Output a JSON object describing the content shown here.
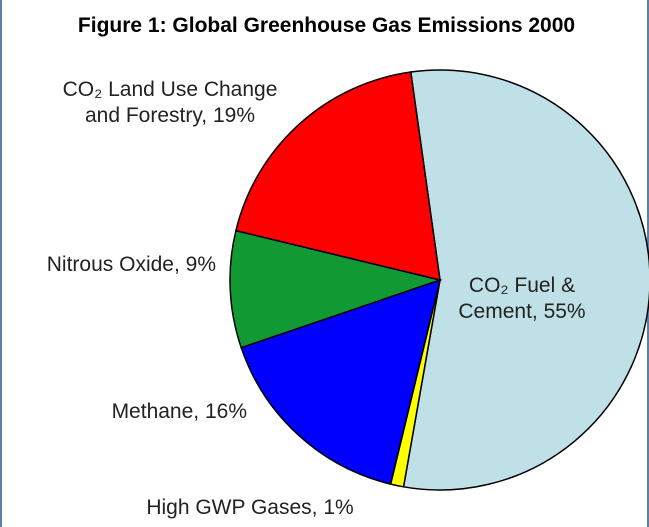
{
  "chart_data": {
    "type": "pie",
    "title": "Figure 1: Global Greenhouse Gas Emissions 2000",
    "slices": [
      {
        "label": "CO₂ Fuel & Cement, 55%",
        "name": "CO₂ Fuel & Cement",
        "value": 55,
        "color": "#bfe0e6"
      },
      {
        "label": "High GWP Gases, 1%",
        "name": "High GWP Gases",
        "value": 1,
        "color": "#ffff00"
      },
      {
        "label": "Methane, 16%",
        "name": "Methane",
        "value": 16,
        "color": "#0000ff"
      },
      {
        "label": "Nitrous Oxide, 9%",
        "name": "Nitrous Oxide",
        "value": 9,
        "color": "#119933"
      },
      {
        "label": "CO₂ Land Use Change and Forestry, 19%",
        "name": "CO₂ Land Use Change and Forestry",
        "value": 19,
        "color": "#ff0000"
      }
    ]
  }
}
